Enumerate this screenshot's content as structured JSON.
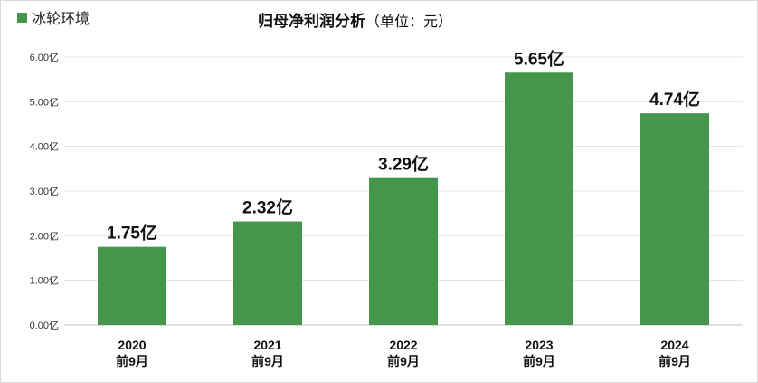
{
  "chart_data": {
    "type": "bar",
    "title": "归母净利润分析",
    "subtitle": "（单位：元）",
    "legend": {
      "label": "冰轮环境",
      "color": "#43964b",
      "position": "top-left"
    },
    "categories": [
      {
        "year": "2020",
        "period": "前9月"
      },
      {
        "year": "2021",
        "period": "前9月"
      },
      {
        "year": "2022",
        "period": "前9月"
      },
      {
        "year": "2023",
        "period": "前9月"
      },
      {
        "year": "2024",
        "period": "前9月"
      }
    ],
    "series": [
      {
        "name": "冰轮环境",
        "color": "#43964b",
        "values": [
          1.75,
          2.32,
          3.29,
          5.65,
          4.74
        ],
        "labels": [
          "1.75亿",
          "2.32亿",
          "3.29亿",
          "5.65亿",
          "4.74亿"
        ]
      }
    ],
    "yticks": [
      "0.00亿",
      "1.00亿",
      "2.00亿",
      "3.00亿",
      "4.00亿",
      "5.00亿",
      "6.00亿"
    ],
    "ylim": [
      0,
      6
    ],
    "grid": true
  }
}
